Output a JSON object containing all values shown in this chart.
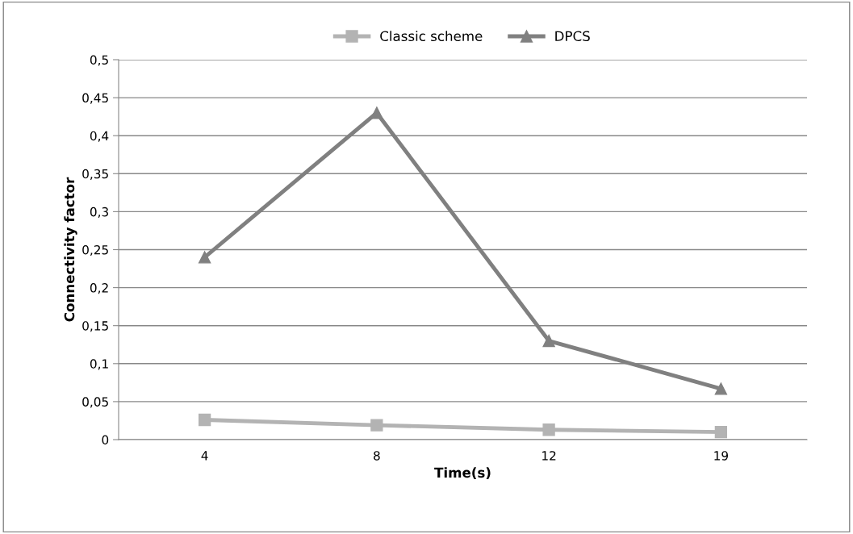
{
  "chart_data": {
    "type": "line",
    "xlabel": "Time(s)",
    "ylabel": "Connectivity factor",
    "categories": [
      "4",
      "8",
      "12",
      "19"
    ],
    "series": [
      {
        "name": "Classic scheme",
        "color": "#b3b3b3",
        "values": [
          0.026,
          0.019,
          0.013,
          0.01
        ],
        "marker": "square"
      },
      {
        "name": "DPCS",
        "color": "#808080",
        "values": [
          0.24,
          0.43,
          0.13,
          0.067
        ],
        "marker": "triangle"
      }
    ],
    "ylim": [
      0,
      0.5
    ],
    "yticks": [
      0,
      {
        "value": 0.05,
        "label": "0,05"
      },
      {
        "value": 0.1,
        "label": "0,1"
      },
      {
        "value": 0.15,
        "label": "0,15"
      },
      {
        "value": 0.2,
        "label": "0,2"
      },
      {
        "value": 0.25,
        "label": "0,25"
      },
      {
        "value": 0.3,
        "label": "0,3"
      },
      {
        "value": 0.35,
        "label": "0,35"
      },
      {
        "value": 0.4,
        "label": "0,4"
      },
      {
        "value": 0.45,
        "label": "0,45"
      },
      {
        "value": 0.5,
        "label": "0,5"
      }
    ],
    "grid": "y",
    "legend": "top",
    "line_style": "solid"
  }
}
